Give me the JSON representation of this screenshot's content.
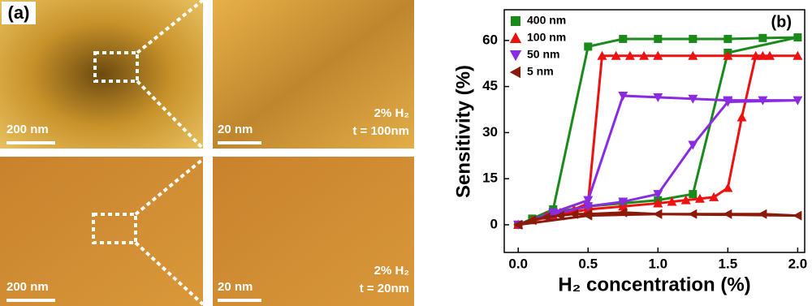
{
  "figure_a": {
    "label": "(a)",
    "images": [
      {
        "scale_bar": "200 nm"
      },
      {
        "scale_bar": "20 nm",
        "annotations": [
          "2% H₂",
          "t = 100nm"
        ]
      },
      {
        "scale_bar": "200 nm"
      },
      {
        "scale_bar": "20 nm",
        "annotations": [
          "2% H₂",
          "t = 20nm"
        ]
      }
    ]
  },
  "chart_data": {
    "type": "line",
    "panel_label": "(b)",
    "x_label": "H₂ concentration (%)",
    "y_label": "Sensitivity (%)",
    "xlim": [
      -0.1,
      2.05
    ],
    "ylim": [
      -9,
      70
    ],
    "xticks": [
      {
        "value": 0,
        "label": "0.0"
      },
      0.5,
      {
        "value": 1,
        "label": "1.0"
      },
      1.5,
      {
        "value": 2,
        "label": "2.0"
      }
    ],
    "yticks": [
      0,
      15,
      30,
      45,
      60
    ],
    "legend": "upper left",
    "series": [
      {
        "name": "400 nm",
        "color": "#1a8a1a",
        "marker": "square",
        "x": [
          0,
          0.1,
          0.25,
          0.5,
          0.75,
          1.0,
          1.25,
          1.5,
          1.75,
          2.0,
          1.5,
          1.25,
          1.0,
          0.75,
          0.5,
          0.25,
          0
        ],
        "values": [
          0,
          2,
          5,
          58,
          60.5,
          60.5,
          60.5,
          60.5,
          60.8,
          61,
          56,
          10,
          8,
          7,
          6,
          4,
          0
        ]
      },
      {
        "name": "100 nm",
        "color": "#ee1111",
        "marker": "triangle-up",
        "x": [
          0,
          0.1,
          0.2,
          0.3,
          0.4,
          0.5,
          0.6,
          0.7,
          0.8,
          0.9,
          1.0,
          1.25,
          1.5,
          1.75,
          2.0,
          1.8,
          1.7,
          1.6,
          1.5,
          1.4,
          1.3,
          1.2,
          1.1,
          1.0,
          0.75,
          0.5,
          0.25,
          0
        ],
        "values": [
          0,
          1.5,
          3,
          4,
          5,
          7,
          55,
          55,
          55,
          55,
          55,
          55,
          55,
          55,
          55,
          55,
          55,
          35,
          12,
          9,
          8.5,
          8,
          7.5,
          7,
          6,
          5,
          3,
          0
        ]
      },
      {
        "name": "50 nm",
        "color": "#8a2be2",
        "marker": "triangle-down",
        "x": [
          0,
          0.25,
          0.5,
          0.75,
          1.0,
          1.25,
          1.5,
          1.75,
          2.0,
          1.5,
          1.25,
          1.0,
          0.75,
          0.5,
          0.25,
          0
        ],
        "values": [
          0,
          4,
          8,
          42,
          41.5,
          41,
          40.5,
          40.5,
          40.5,
          40,
          26,
          10,
          7.5,
          6,
          3.5,
          0
        ]
      },
      {
        "name": "5 nm",
        "color": "#8b1a0a",
        "marker": "triangle-left",
        "x": [
          0,
          0.1,
          0.2,
          0.3,
          0.4,
          0.5,
          0.75,
          1.0,
          1.25,
          1.5,
          1.75,
          2.0,
          1.0,
          0.5,
          0
        ],
        "values": [
          0,
          1.5,
          2.5,
          3,
          3.5,
          3.5,
          4,
          3.5,
          3.5,
          3.5,
          3.5,
          3,
          3.5,
          3,
          0
        ]
      }
    ]
  }
}
